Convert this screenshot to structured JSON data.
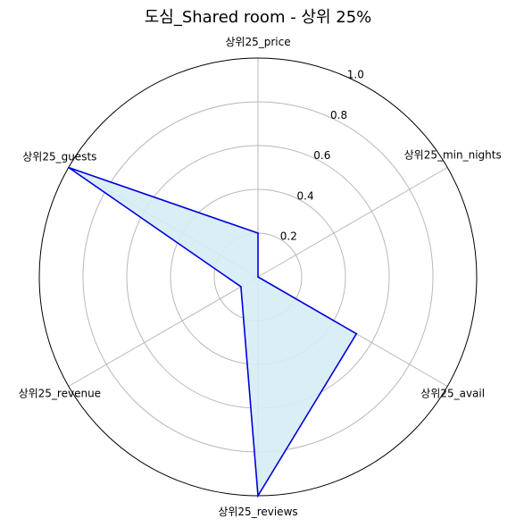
{
  "chart_data": {
    "type": "radar",
    "title": "도심_Shared room - 상위 25%",
    "axes": [
      "상위25_price",
      "상위25_min_nights",
      "상위25_avail",
      "상위25_reviews",
      "상위25_revenue",
      "상위25_guests"
    ],
    "series": [
      {
        "values": [
          0.2,
          0.0,
          0.52,
          1.0,
          0.09,
          1.0
        ]
      }
    ],
    "rlim": [
      0,
      1.0
    ],
    "rticks": [
      "0.2",
      "0.4",
      "0.6",
      "0.8",
      "1.0"
    ],
    "grid": true,
    "colors": {
      "line": "#0000dd",
      "fill": "#d6ecf5",
      "grid": "#b8b8b8",
      "frame": "#000000"
    }
  }
}
